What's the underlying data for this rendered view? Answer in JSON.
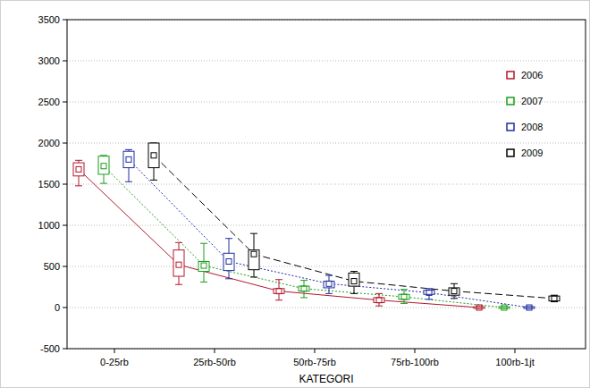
{
  "chart_data": {
    "type": "box",
    "x_label": "KATEGORI",
    "categories": [
      "0-25rb",
      "25rb-50rb",
      "50rb-75rb",
      "75rb-100rb",
      "100rb-1jt"
    ],
    "ylim": [
      -500,
      3500
    ],
    "yticks": [
      -500,
      0,
      500,
      1000,
      1500,
      2000,
      2500,
      3000,
      3500
    ],
    "grid": true,
    "legend": "upper right",
    "series": [
      {
        "name": "2006",
        "color": "#b2182b",
        "line_style": "solid",
        "marker": "square",
        "values": [
          1680,
          520,
          200,
          90,
          0
        ],
        "box_low": [
          1600,
          380,
          170,
          60,
          -10
        ],
        "box_high": [
          1760,
          700,
          230,
          120,
          10
        ],
        "whisker_low": [
          1480,
          280,
          90,
          20,
          -10
        ],
        "whisker_high": [
          1790,
          790,
          340,
          170,
          10
        ]
      },
      {
        "name": "2007",
        "color": "#1a9e1a",
        "line_style": "dotted",
        "marker": "square",
        "values": [
          1720,
          510,
          230,
          130,
          0
        ],
        "box_low": [
          1620,
          440,
          200,
          100,
          -10
        ],
        "box_high": [
          1840,
          560,
          260,
          160,
          10
        ],
        "whisker_low": [
          1510,
          310,
          120,
          50,
          -10
        ],
        "whisker_high": [
          1850,
          780,
          330,
          220,
          10
        ]
      },
      {
        "name": "2008",
        "color": "#1f2ca0",
        "line_style": "dotted",
        "marker": "square",
        "values": [
          1800,
          560,
          290,
          180,
          0
        ],
        "box_low": [
          1700,
          450,
          240,
          160,
          -10
        ],
        "box_high": [
          1900,
          660,
          320,
          210,
          10
        ],
        "whisker_low": [
          1530,
          350,
          170,
          100,
          -10
        ],
        "whisker_high": [
          1920,
          840,
          390,
          230,
          10
        ]
      },
      {
        "name": "2009",
        "color": "#000000",
        "line_style": "dashed",
        "marker": "square",
        "values": [
          1850,
          650,
          320,
          200,
          110
        ],
        "box_low": [
          1700,
          460,
          260,
          150,
          80
        ],
        "box_high": [
          2000,
          700,
          420,
          240,
          140
        ],
        "whisker_low": [
          1550,
          370,
          170,
          110,
          70
        ],
        "whisker_high": [
          2000,
          900,
          440,
          290,
          150
        ]
      }
    ]
  }
}
